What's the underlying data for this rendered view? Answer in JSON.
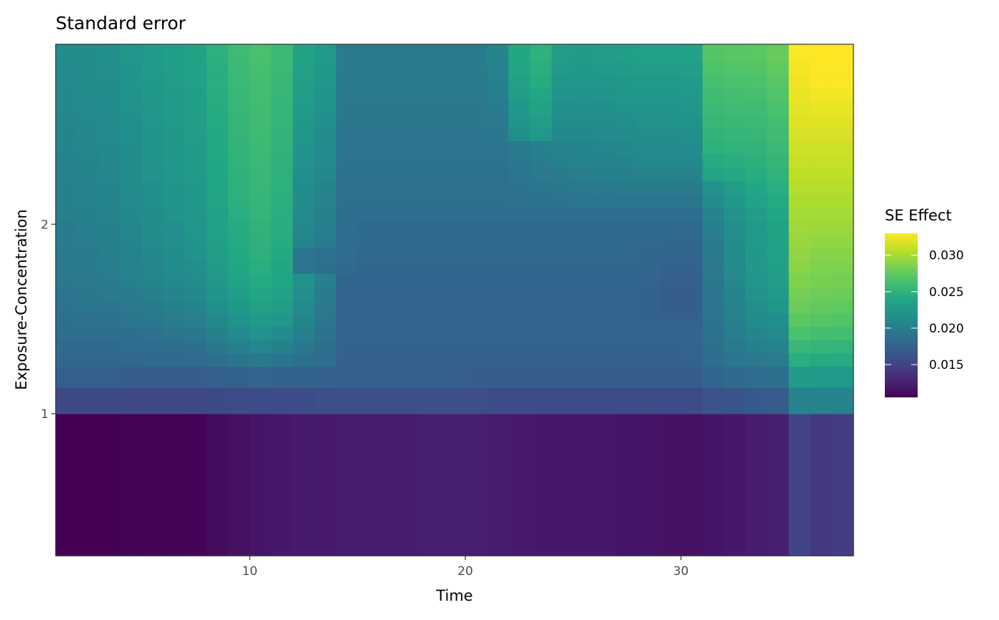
{
  "chart_data": {
    "type": "heatmap",
    "title": "Standard error",
    "xlabel": "Time",
    "ylabel": "Exposure-Concentration",
    "xlim": [
      1,
      38
    ],
    "ylim": [
      0.25,
      2.95
    ],
    "x_ticks": [
      10,
      20,
      30
    ],
    "y_ticks": [
      1,
      2
    ],
    "x_tick_labels": [
      "10",
      "20",
      "30"
    ],
    "y_tick_labels": [
      "1",
      "2"
    ],
    "legend": {
      "title": "SE Effect",
      "placement": "right",
      "min": 0.0105,
      "max": 0.033,
      "breaks": [
        0.015,
        0.02,
        0.025,
        0.03
      ],
      "break_labels": [
        "0.015",
        "0.020",
        "0.025",
        "0.030"
      ],
      "colormap": "viridis"
    },
    "x_edges": [
      1,
      2,
      3,
      4,
      5,
      6,
      7,
      8,
      9,
      10,
      11,
      12,
      13,
      14,
      15,
      16,
      17,
      18,
      19,
      20,
      21,
      22,
      23,
      24,
      25,
      26,
      27,
      28,
      29,
      30,
      31,
      32,
      33,
      34,
      35,
      36,
      37,
      38
    ],
    "y_edges": [
      0.25,
      1.0,
      1.14,
      1.25,
      1.32,
      1.39,
      1.46,
      1.53,
      1.6,
      1.67,
      1.74,
      1.81,
      1.88,
      1.95,
      2.02,
      2.09,
      2.16,
      2.23,
      2.3,
      2.37,
      2.44,
      2.51,
      2.58,
      2.65,
      2.72,
      2.79,
      2.86,
      2.95
    ],
    "z": [
      [
        0.0105,
        0.0105,
        0.0105,
        0.0106,
        0.0106,
        0.0106,
        0.0107,
        0.0112,
        0.0115,
        0.0118,
        0.012,
        0.0121,
        0.0121,
        0.0122,
        0.0122,
        0.0123,
        0.0123,
        0.0124,
        0.0124,
        0.0124,
        0.0122,
        0.0121,
        0.012,
        0.012,
        0.012,
        0.0119,
        0.0118,
        0.0117,
        0.0116,
        0.0115,
        0.0118,
        0.012,
        0.0122,
        0.0124,
        0.015,
        0.0142,
        0.0145
      ],
      [
        0.0155,
        0.0155,
        0.0155,
        0.0154,
        0.0154,
        0.0154,
        0.0154,
        0.0155,
        0.0156,
        0.0157,
        0.0157,
        0.0157,
        0.0158,
        0.0158,
        0.0158,
        0.0158,
        0.0158,
        0.0158,
        0.0158,
        0.0158,
        0.0157,
        0.0157,
        0.0157,
        0.0157,
        0.0156,
        0.0156,
        0.0156,
        0.0156,
        0.0156,
        0.0156,
        0.0162,
        0.0165,
        0.0168,
        0.017,
        0.0205,
        0.0205,
        0.0205
      ],
      [
        0.0173,
        0.0173,
        0.0173,
        0.0172,
        0.0172,
        0.0172,
        0.0172,
        0.0174,
        0.0176,
        0.0177,
        0.0176,
        0.0176,
        0.0175,
        0.0173,
        0.0173,
        0.0173,
        0.0173,
        0.0173,
        0.0173,
        0.0172,
        0.0172,
        0.0172,
        0.0172,
        0.0172,
        0.0172,
        0.0172,
        0.0172,
        0.0172,
        0.0172,
        0.0172,
        0.0178,
        0.0182,
        0.0185,
        0.0188,
        0.0228,
        0.0226,
        0.0226
      ],
      [
        0.018,
        0.018,
        0.018,
        0.018,
        0.0181,
        0.0181,
        0.0182,
        0.0187,
        0.0192,
        0.0195,
        0.0192,
        0.0188,
        0.0184,
        0.0175,
        0.0175,
        0.0175,
        0.0175,
        0.0175,
        0.0175,
        0.0175,
        0.0175,
        0.0175,
        0.0175,
        0.0175,
        0.0175,
        0.0175,
        0.0175,
        0.0175,
        0.0175,
        0.0176,
        0.0185,
        0.0192,
        0.0196,
        0.0198,
        0.0245,
        0.0242,
        0.0242
      ],
      [
        0.0183,
        0.0183,
        0.0183,
        0.0184,
        0.0185,
        0.0186,
        0.0188,
        0.0195,
        0.0202,
        0.0208,
        0.0203,
        0.0195,
        0.0188,
        0.0176,
        0.0176,
        0.0176,
        0.0176,
        0.0176,
        0.0176,
        0.0176,
        0.0176,
        0.0176,
        0.0176,
        0.0176,
        0.0176,
        0.0176,
        0.0176,
        0.0176,
        0.0176,
        0.0177,
        0.0188,
        0.0196,
        0.0202,
        0.0205,
        0.0255,
        0.0253,
        0.0252
      ],
      [
        0.0186,
        0.0186,
        0.0187,
        0.0188,
        0.019,
        0.0192,
        0.0195,
        0.0203,
        0.0211,
        0.0218,
        0.0213,
        0.0202,
        0.0191,
        0.0177,
        0.0177,
        0.0177,
        0.0177,
        0.0177,
        0.0177,
        0.0177,
        0.0177,
        0.0177,
        0.0177,
        0.0177,
        0.0177,
        0.0177,
        0.0177,
        0.0177,
        0.0177,
        0.0177,
        0.019,
        0.02,
        0.0207,
        0.0211,
        0.0265,
        0.0262,
        0.0262
      ],
      [
        0.0188,
        0.0189,
        0.019,
        0.0192,
        0.0195,
        0.0198,
        0.0201,
        0.021,
        0.0219,
        0.0226,
        0.0222,
        0.0207,
        0.0194,
        0.0177,
        0.0177,
        0.0177,
        0.0177,
        0.0177,
        0.0177,
        0.0177,
        0.0177,
        0.0177,
        0.0177,
        0.0177,
        0.0177,
        0.0177,
        0.0177,
        0.0176,
        0.0174,
        0.0174,
        0.0191,
        0.0203,
        0.0212,
        0.0217,
        0.0272,
        0.0269,
        0.0268
      ],
      [
        0.0191,
        0.0192,
        0.0193,
        0.0196,
        0.0199,
        0.0203,
        0.0206,
        0.0216,
        0.0225,
        0.0233,
        0.0229,
        0.0212,
        0.0197,
        0.0177,
        0.0177,
        0.0177,
        0.0177,
        0.0177,
        0.0177,
        0.0177,
        0.0177,
        0.0177,
        0.0177,
        0.0177,
        0.0177,
        0.0177,
        0.0177,
        0.0176,
        0.0172,
        0.0172,
        0.0192,
        0.0205,
        0.0216,
        0.0222,
        0.0278,
        0.0275,
        0.0274
      ],
      [
        0.0193,
        0.0194,
        0.0196,
        0.0199,
        0.0203,
        0.0207,
        0.021,
        0.022,
        0.023,
        0.0238,
        0.0233,
        0.0216,
        0.0199,
        0.0177,
        0.0177,
        0.0177,
        0.0177,
        0.0177,
        0.0177,
        0.0177,
        0.0177,
        0.0177,
        0.0177,
        0.0177,
        0.0177,
        0.0177,
        0.0177,
        0.0176,
        0.0172,
        0.0172,
        0.0193,
        0.0207,
        0.0219,
        0.0226,
        0.0283,
        0.028,
        0.0279
      ],
      [
        0.0195,
        0.0196,
        0.0198,
        0.0202,
        0.0206,
        0.021,
        0.0214,
        0.0224,
        0.0234,
        0.0242,
        0.0237,
        0.0219,
        0.0201,
        0.0178,
        0.0178,
        0.0178,
        0.0178,
        0.0178,
        0.0178,
        0.0178,
        0.0178,
        0.0178,
        0.0178,
        0.0178,
        0.0178,
        0.0178,
        0.0178,
        0.0177,
        0.0173,
        0.0173,
        0.0194,
        0.0209,
        0.0222,
        0.0229,
        0.0287,
        0.0284,
        0.0283
      ],
      [
        0.0196,
        0.0198,
        0.02,
        0.0204,
        0.0208,
        0.0213,
        0.0217,
        0.0228,
        0.0238,
        0.0245,
        0.0239,
        0.0193,
        0.0188,
        0.0182,
        0.018,
        0.018,
        0.018,
        0.018,
        0.018,
        0.018,
        0.018,
        0.018,
        0.018,
        0.018,
        0.018,
        0.018,
        0.018,
        0.0179,
        0.0176,
        0.0176,
        0.0196,
        0.0211,
        0.0224,
        0.0231,
        0.029,
        0.0287,
        0.0286
      ],
      [
        0.0197,
        0.0199,
        0.0201,
        0.0205,
        0.021,
        0.0215,
        0.0219,
        0.023,
        0.024,
        0.0248,
        0.0241,
        0.0194,
        0.019,
        0.0184,
        0.0181,
        0.0181,
        0.0181,
        0.0181,
        0.0181,
        0.0181,
        0.0181,
        0.0181,
        0.0181,
        0.0181,
        0.0181,
        0.0181,
        0.0181,
        0.018,
        0.0177,
        0.0177,
        0.0197,
        0.0212,
        0.0225,
        0.0233,
        0.0292,
        0.0289,
        0.0289
      ],
      [
        0.0198,
        0.02,
        0.0202,
        0.0207,
        0.0212,
        0.0216,
        0.022,
        0.0231,
        0.0242,
        0.0249,
        0.0243,
        0.0207,
        0.0199,
        0.0185,
        0.0182,
        0.0182,
        0.0182,
        0.0182,
        0.0182,
        0.0182,
        0.0182,
        0.0182,
        0.0182,
        0.0182,
        0.0182,
        0.0182,
        0.0182,
        0.0181,
        0.0179,
        0.018,
        0.0199,
        0.0213,
        0.0226,
        0.0234,
        0.0295,
        0.0293,
        0.0293
      ],
      [
        0.0199,
        0.0201,
        0.0203,
        0.0208,
        0.0213,
        0.0217,
        0.0222,
        0.0233,
        0.0243,
        0.025,
        0.0244,
        0.0209,
        0.0201,
        0.0186,
        0.0183,
        0.0183,
        0.0183,
        0.0183,
        0.0183,
        0.0183,
        0.0183,
        0.0183,
        0.0183,
        0.0183,
        0.0183,
        0.0183,
        0.0183,
        0.0183,
        0.0183,
        0.0183,
        0.0202,
        0.0216,
        0.0227,
        0.0235,
        0.0297,
        0.0296,
        0.0296
      ],
      [
        0.0201,
        0.0202,
        0.0205,
        0.021,
        0.0215,
        0.0219,
        0.0223,
        0.0234,
        0.0245,
        0.0252,
        0.0245,
        0.0211,
        0.0203,
        0.0187,
        0.0186,
        0.0186,
        0.0186,
        0.0186,
        0.0186,
        0.0186,
        0.0186,
        0.0186,
        0.0186,
        0.0186,
        0.0186,
        0.0186,
        0.0186,
        0.0186,
        0.0186,
        0.0186,
        0.0206,
        0.0219,
        0.023,
        0.0238,
        0.0299,
        0.0299,
        0.0299
      ],
      [
        0.0202,
        0.0204,
        0.0206,
        0.0211,
        0.0216,
        0.022,
        0.0224,
        0.0236,
        0.0247,
        0.0253,
        0.0246,
        0.0213,
        0.0205,
        0.0188,
        0.0188,
        0.0188,
        0.0188,
        0.0188,
        0.0188,
        0.0188,
        0.0188,
        0.0189,
        0.019,
        0.0191,
        0.0192,
        0.0193,
        0.0193,
        0.0193,
        0.0193,
        0.0193,
        0.0212,
        0.0224,
        0.0234,
        0.0242,
        0.0302,
        0.0302,
        0.0302
      ],
      [
        0.0203,
        0.0205,
        0.0207,
        0.0212,
        0.0217,
        0.0221,
        0.0225,
        0.0237,
        0.0248,
        0.0254,
        0.0247,
        0.0215,
        0.0207,
        0.0189,
        0.0189,
        0.0189,
        0.0189,
        0.0189,
        0.0189,
        0.0189,
        0.0189,
        0.0191,
        0.0193,
        0.0195,
        0.0196,
        0.0197,
        0.0198,
        0.0199,
        0.0199,
        0.0199,
        0.0218,
        0.0229,
        0.0238,
        0.0246,
        0.0305,
        0.0305,
        0.0305
      ],
      [
        0.0204,
        0.0206,
        0.0208,
        0.0213,
        0.0218,
        0.0222,
        0.0226,
        0.0238,
        0.0249,
        0.0255,
        0.0248,
        0.0217,
        0.0209,
        0.019,
        0.019,
        0.019,
        0.019,
        0.019,
        0.019,
        0.019,
        0.019,
        0.0193,
        0.0196,
        0.0199,
        0.02,
        0.0201,
        0.0203,
        0.0205,
        0.0205,
        0.0205,
        0.0236,
        0.0241,
        0.0244,
        0.025,
        0.0308,
        0.0308,
        0.0308
      ],
      [
        0.0205,
        0.0207,
        0.0209,
        0.0214,
        0.0219,
        0.0223,
        0.0227,
        0.0239,
        0.025,
        0.0256,
        0.0249,
        0.0219,
        0.0211,
        0.0191,
        0.0191,
        0.0191,
        0.0191,
        0.0191,
        0.0191,
        0.0191,
        0.0191,
        0.0195,
        0.0199,
        0.0203,
        0.0204,
        0.0205,
        0.0207,
        0.0209,
        0.0209,
        0.0209,
        0.0242,
        0.0246,
        0.0248,
        0.0253,
        0.0311,
        0.0311,
        0.0311
      ],
      [
        0.0206,
        0.0208,
        0.021,
        0.0215,
        0.022,
        0.0224,
        0.0228,
        0.024,
        0.0251,
        0.0257,
        0.025,
        0.0221,
        0.0213,
        0.0192,
        0.0192,
        0.0192,
        0.0192,
        0.0192,
        0.0192,
        0.0192,
        0.0192,
        0.0197,
        0.0202,
        0.0206,
        0.0207,
        0.0208,
        0.021,
        0.0212,
        0.0212,
        0.0213,
        0.0247,
        0.025,
        0.0251,
        0.0256,
        0.0314,
        0.0314,
        0.0314
      ],
      [
        0.0207,
        0.0209,
        0.0211,
        0.0216,
        0.0221,
        0.0225,
        0.0229,
        0.0241,
        0.0252,
        0.0258,
        0.0251,
        0.0223,
        0.0215,
        0.0193,
        0.0193,
        0.0193,
        0.0193,
        0.0193,
        0.0193,
        0.0193,
        0.0195,
        0.0215,
        0.0225,
        0.021,
        0.021,
        0.0211,
        0.0213,
        0.0215,
        0.0215,
        0.0216,
        0.025,
        0.0253,
        0.0254,
        0.0259,
        0.0317,
        0.0317,
        0.0317
      ],
      [
        0.0208,
        0.021,
        0.0212,
        0.0217,
        0.0222,
        0.0226,
        0.023,
        0.0242,
        0.0253,
        0.0259,
        0.0252,
        0.0225,
        0.0217,
        0.0194,
        0.0194,
        0.0194,
        0.0194,
        0.0194,
        0.0194,
        0.0194,
        0.0197,
        0.022,
        0.023,
        0.0214,
        0.0213,
        0.0214,
        0.0216,
        0.0218,
        0.0218,
        0.0219,
        0.0254,
        0.0256,
        0.0257,
        0.0262,
        0.0319,
        0.032,
        0.032
      ],
      [
        0.0209,
        0.0211,
        0.0213,
        0.0218,
        0.0223,
        0.0227,
        0.0231,
        0.0243,
        0.0254,
        0.026,
        0.0253,
        0.0227,
        0.0219,
        0.0195,
        0.0195,
        0.0195,
        0.0195,
        0.0195,
        0.0195,
        0.0195,
        0.0199,
        0.0224,
        0.0235,
        0.0217,
        0.0216,
        0.0217,
        0.0219,
        0.0221,
        0.0221,
        0.0222,
        0.0257,
        0.0259,
        0.026,
        0.0265,
        0.0321,
        0.0323,
        0.0323
      ],
      [
        0.021,
        0.0212,
        0.0214,
        0.0219,
        0.0224,
        0.0228,
        0.0232,
        0.0244,
        0.0255,
        0.0261,
        0.0254,
        0.0229,
        0.0221,
        0.0196,
        0.0196,
        0.0196,
        0.0196,
        0.0196,
        0.0196,
        0.0196,
        0.0201,
        0.0229,
        0.0239,
        0.022,
        0.0219,
        0.022,
        0.0222,
        0.0224,
        0.0224,
        0.0225,
        0.026,
        0.0262,
        0.0263,
        0.0268,
        0.0323,
        0.0326,
        0.0326
      ],
      [
        0.0211,
        0.0213,
        0.0215,
        0.022,
        0.0225,
        0.0229,
        0.0233,
        0.0245,
        0.0256,
        0.0262,
        0.0255,
        0.0231,
        0.0223,
        0.0197,
        0.0197,
        0.0197,
        0.0197,
        0.0197,
        0.0197,
        0.0197,
        0.0203,
        0.0233,
        0.0243,
        0.0223,
        0.0222,
        0.0223,
        0.0225,
        0.0227,
        0.0227,
        0.0228,
        0.0263,
        0.0265,
        0.0266,
        0.0271,
        0.0325,
        0.0329,
        0.0329
      ],
      [
        0.0212,
        0.0214,
        0.0216,
        0.0221,
        0.0226,
        0.023,
        0.0234,
        0.0246,
        0.0257,
        0.0263,
        0.0256,
        0.0233,
        0.0225,
        0.0198,
        0.0198,
        0.0198,
        0.0198,
        0.0198,
        0.0198,
        0.0198,
        0.0205,
        0.0236,
        0.0246,
        0.0226,
        0.0225,
        0.0226,
        0.0228,
        0.023,
        0.023,
        0.0231,
        0.0266,
        0.0268,
        0.0269,
        0.0274,
        0.0327,
        0.0331,
        0.0332
      ],
      [
        0.0213,
        0.0215,
        0.0217,
        0.0222,
        0.0227,
        0.0231,
        0.0235,
        0.0247,
        0.0258,
        0.0264,
        0.0257,
        0.0235,
        0.0227,
        0.0199,
        0.0199,
        0.0199,
        0.0199,
        0.0199,
        0.0199,
        0.0199,
        0.0207,
        0.0239,
        0.0249,
        0.0229,
        0.0228,
        0.0229,
        0.0231,
        0.0233,
        0.0233,
        0.0234,
        0.0269,
        0.0271,
        0.0272,
        0.0277,
        0.0329,
        0.0333,
        0.0335
      ]
    ]
  }
}
